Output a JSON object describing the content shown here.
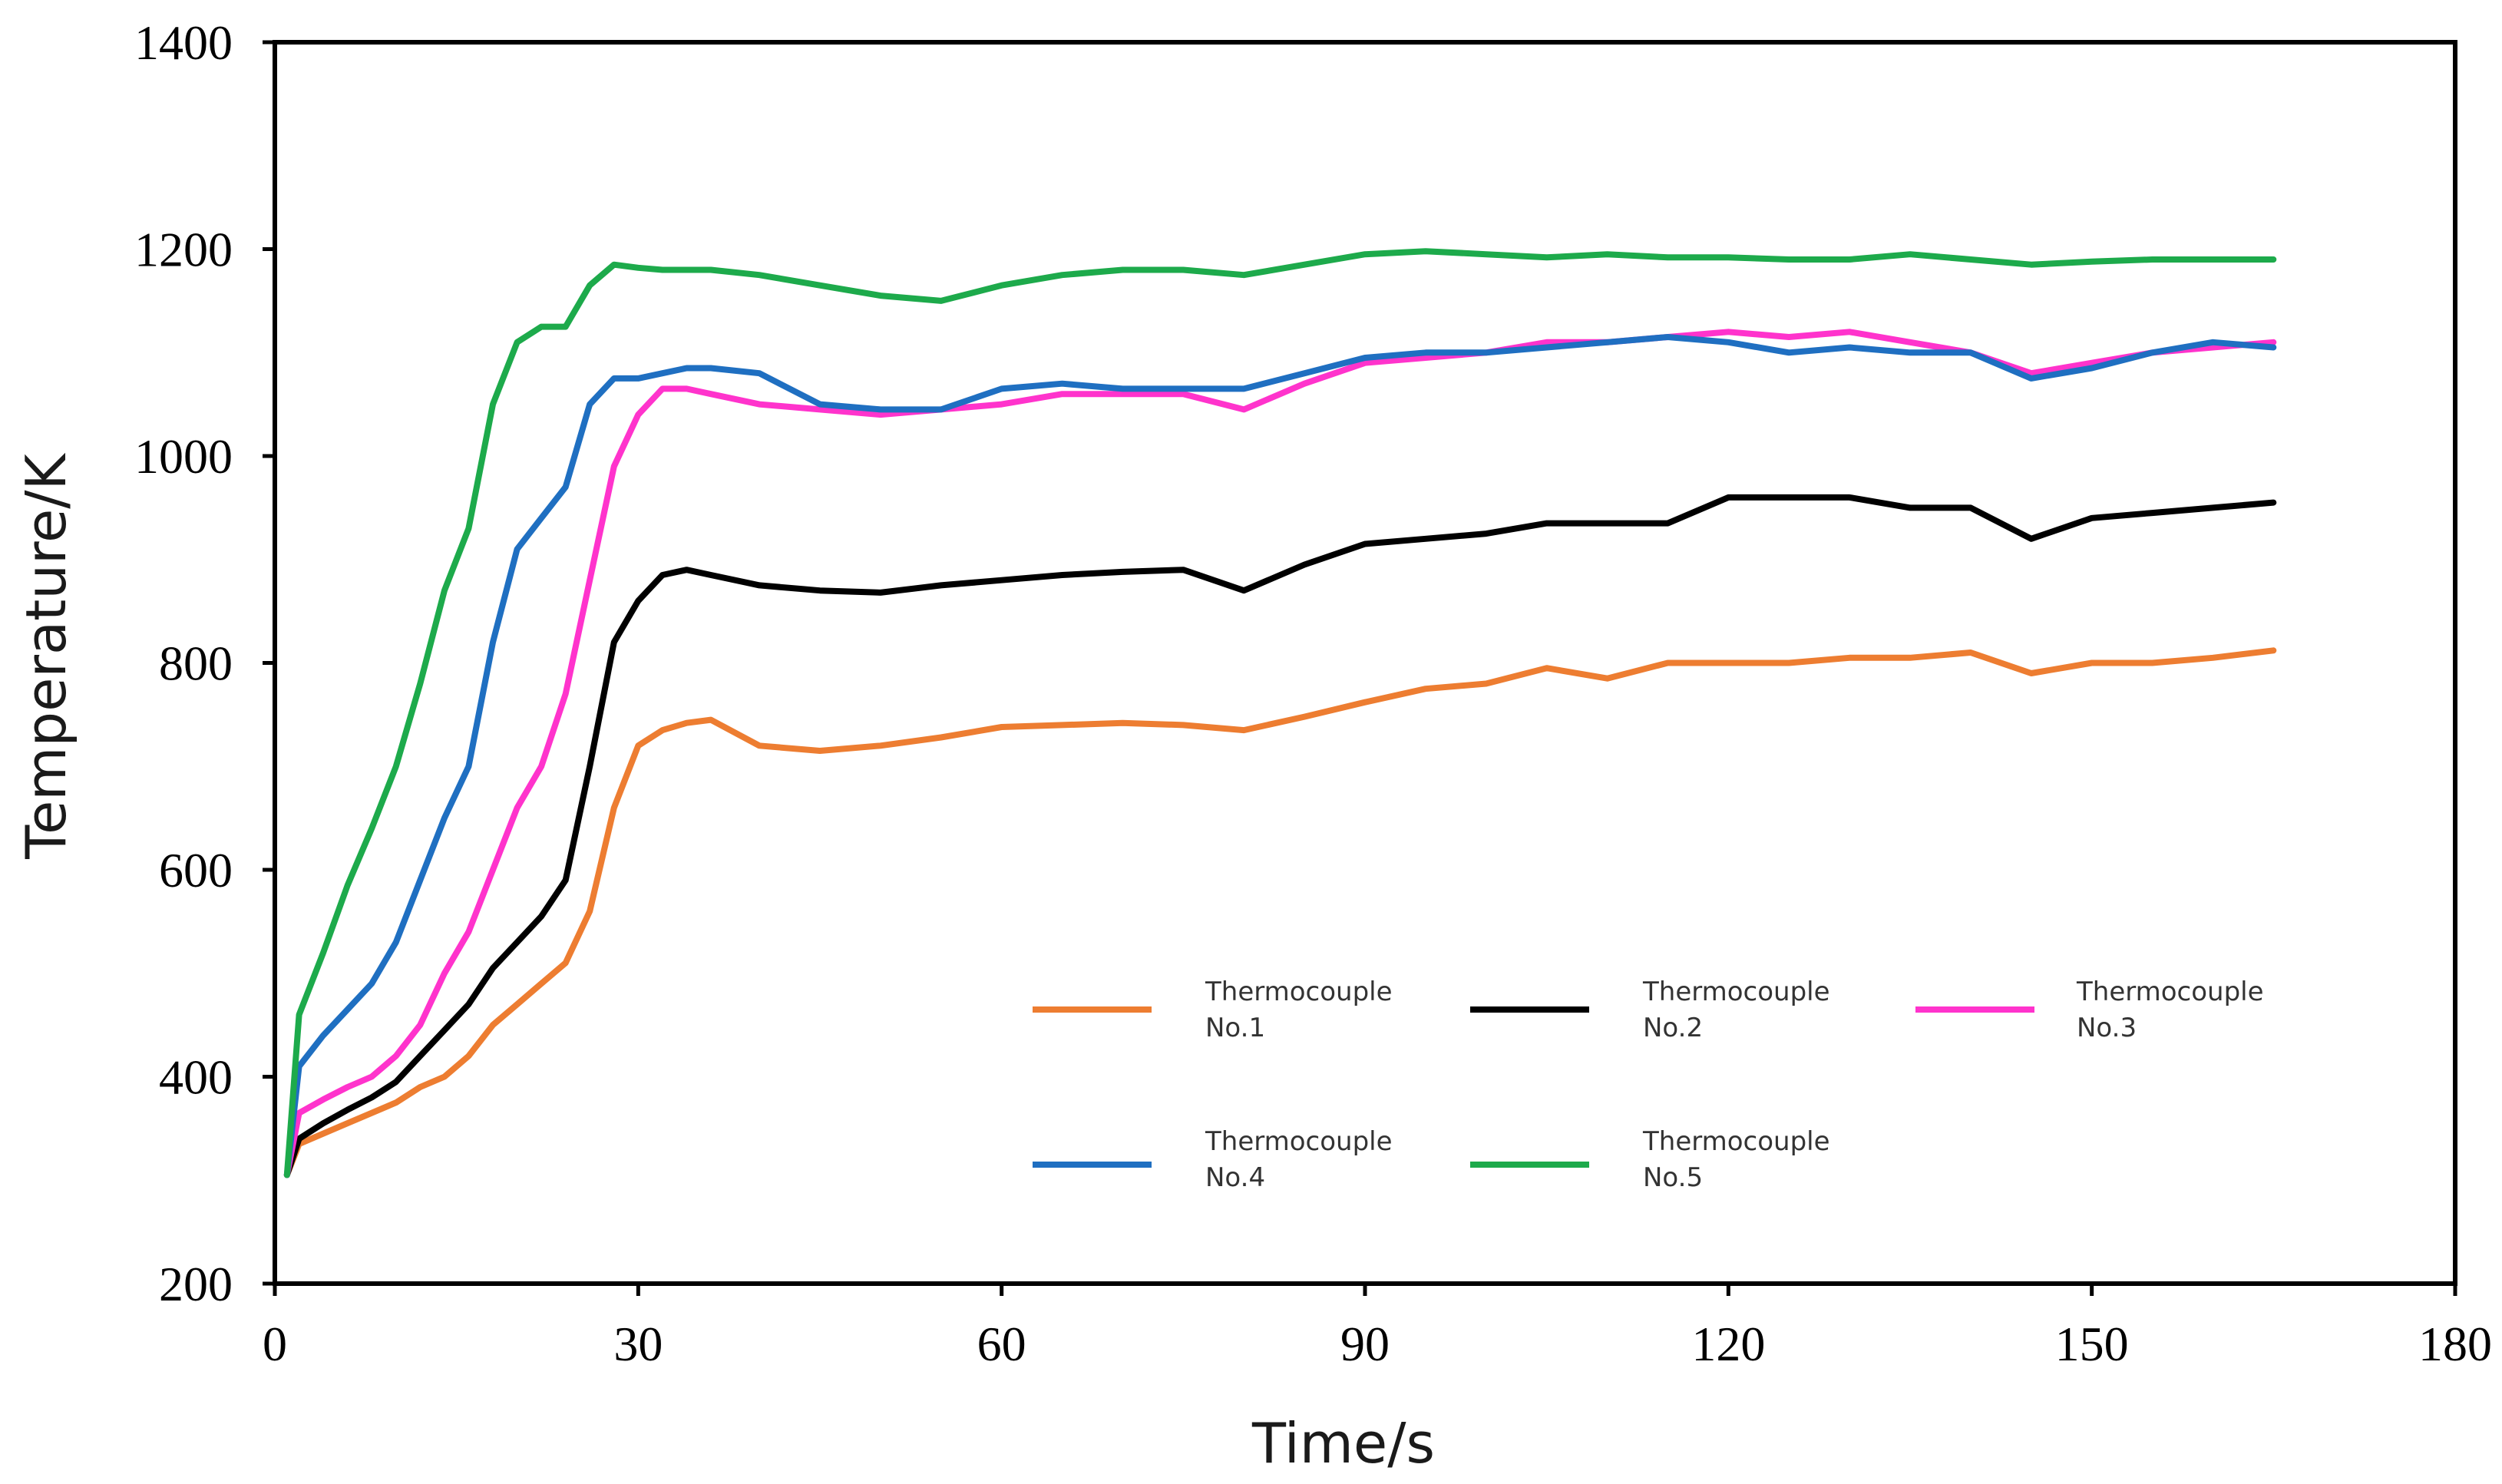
{
  "chart_data": {
    "type": "line",
    "title": "",
    "xlabel": "Time/s",
    "ylabel": "Temperature/K",
    "xlim": [
      0,
      180
    ],
    "ylim": [
      200,
      1400
    ],
    "xticks": [
      0,
      30,
      60,
      90,
      120,
      150,
      180
    ],
    "yticks": [
      200,
      400,
      600,
      800,
      1000,
      1200,
      1400
    ],
    "grid": false,
    "legend": {
      "placement": "lower-right",
      "items": [
        {
          "line1": "Thermocouple",
          "line2": "No.1"
        },
        {
          "line1": "Thermocouple",
          "line2": "No.2"
        },
        {
          "line1": "Thermocouple",
          "line2": "No.3"
        },
        {
          "line1": "Thermocouple",
          "line2": "No.4"
        },
        {
          "line1": "Thermocouple",
          "line2": "No.5"
        }
      ]
    },
    "x": [
      1,
      2,
      4,
      6,
      8,
      10,
      12,
      14,
      16,
      18,
      20,
      22,
      24,
      26,
      28,
      30,
      32,
      34,
      36,
      40,
      45,
      50,
      55,
      60,
      65,
      70,
      75,
      80,
      85,
      90,
      95,
      100,
      105,
      110,
      115,
      120,
      125,
      130,
      135,
      140,
      145,
      150,
      155,
      160,
      165
    ],
    "series": [
      {
        "name": "Thermocouple No.1",
        "color": "#ED7D31",
        "values": [
          305,
          335,
          345,
          355,
          365,
          375,
          390,
          400,
          420,
          450,
          470,
          490,
          510,
          560,
          660,
          720,
          735,
          742,
          745,
          720,
          715,
          720,
          728,
          738,
          740,
          742,
          740,
          735,
          748,
          762,
          775,
          780,
          795,
          785,
          800,
          800,
          800,
          805,
          805,
          810,
          790,
          800,
          800,
          805,
          812
        ]
      },
      {
        "name": "Thermocouple No.2",
        "color": "#000000",
        "values": [
          305,
          340,
          355,
          368,
          380,
          395,
          420,
          445,
          470,
          505,
          530,
          555,
          590,
          700,
          820,
          860,
          885,
          890,
          885,
          875,
          870,
          868,
          875,
          880,
          885,
          888,
          890,
          870,
          895,
          915,
          920,
          925,
          935,
          935,
          935,
          960,
          960,
          960,
          950,
          950,
          920,
          940,
          945,
          950,
          955
        ]
      },
      {
        "name": "Thermocouple No.3",
        "color": "#FF33CC",
        "values": [
          305,
          365,
          378,
          390,
          400,
          420,
          450,
          500,
          540,
          600,
          660,
          700,
          770,
          880,
          990,
          1040,
          1065,
          1065,
          1060,
          1050,
          1045,
          1040,
          1045,
          1050,
          1060,
          1060,
          1060,
          1045,
          1070,
          1090,
          1095,
          1100,
          1110,
          1110,
          1115,
          1120,
          1115,
          1120,
          1110,
          1100,
          1080,
          1090,
          1100,
          1105,
          1110
        ]
      },
      {
        "name": "Thermocouple No.4",
        "color": "#1F6FC1",
        "values": [
          305,
          410,
          440,
          465,
          490,
          530,
          590,
          650,
          700,
          820,
          910,
          940,
          970,
          1050,
          1075,
          1075,
          1080,
          1085,
          1085,
          1080,
          1050,
          1045,
          1045,
          1065,
          1070,
          1065,
          1065,
          1065,
          1080,
          1095,
          1100,
          1100,
          1105,
          1110,
          1115,
          1110,
          1100,
          1105,
          1100,
          1100,
          1075,
          1085,
          1100,
          1110,
          1105
        ]
      },
      {
        "name": "Thermocouple No.5",
        "color": "#1DAA4B",
        "values": [
          305,
          460,
          520,
          585,
          640,
          700,
          780,
          870,
          930,
          1050,
          1110,
          1125,
          1125,
          1165,
          1185,
          1182,
          1180,
          1180,
          1180,
          1175,
          1165,
          1155,
          1150,
          1165,
          1175,
          1180,
          1180,
          1175,
          1185,
          1195,
          1198,
          1195,
          1192,
          1195,
          1192,
          1192,
          1190,
          1190,
          1195,
          1190,
          1185,
          1188,
          1190,
          1190,
          1190
        ]
      }
    ]
  }
}
